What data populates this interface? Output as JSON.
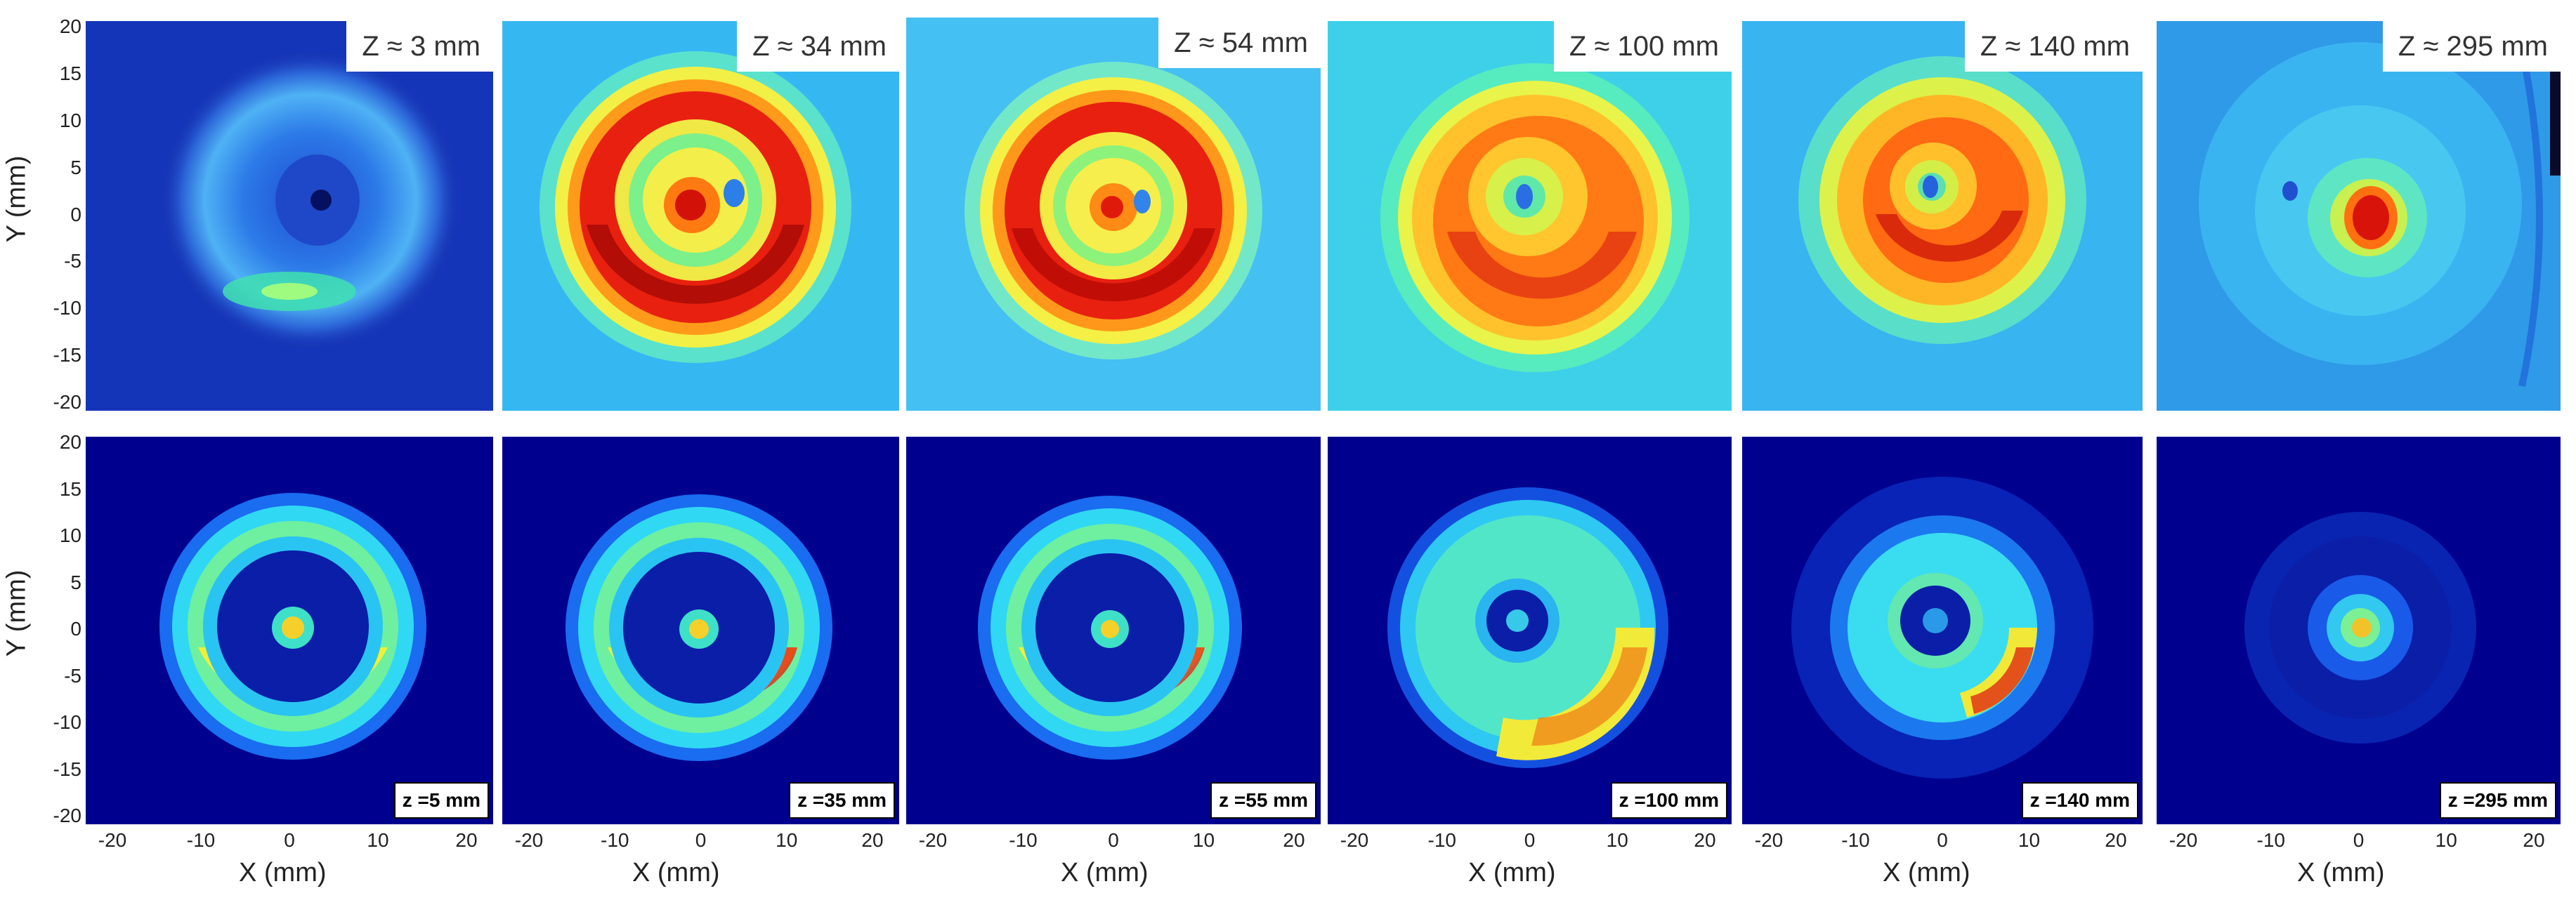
{
  "figure": {
    "top_row": {
      "labels": [
        "Z ≈ 3 mm",
        "Z ≈ 34 mm",
        "Z ≈ 54 mm",
        "Z ≈ 100 mm",
        "Z ≈ 140 mm",
        "Z ≈ 295 mm"
      ]
    },
    "bottom_row": {
      "labels": [
        "z =5 mm",
        "z =35 mm",
        "z =55 mm",
        "z =100 mm",
        "z =140 mm",
        "z =295 mm"
      ]
    },
    "y_axis": {
      "title": "Y (mm)",
      "ticks": [
        "20",
        "15",
        "10",
        "5",
        "0",
        "-5",
        "-10",
        "-15",
        "-20"
      ]
    },
    "x_axis": {
      "title": "X (mm)",
      "ticks": [
        "-20",
        "-10",
        "0",
        "10",
        "20"
      ]
    },
    "colors": {
      "deep_blue": "#0a1a8c",
      "cyan": "#25c8ff",
      "green": "#3cff8c",
      "yellow": "#f5ff3a",
      "red": "#e01010"
    }
  }
}
